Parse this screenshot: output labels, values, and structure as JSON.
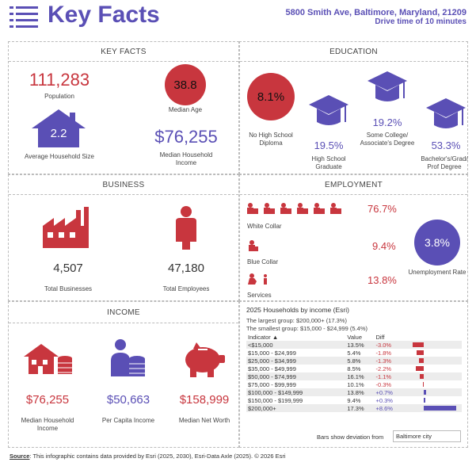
{
  "header": {
    "title": "Key Facts",
    "address": "5800 Smith Ave, Baltimore, Maryland, 21209",
    "drive_time": "Drive time of 10 minutes"
  },
  "key_facts": {
    "heading": "KEY FACTS",
    "population": {
      "value": "111,283",
      "label": "Population"
    },
    "median_age": {
      "value": "38.8",
      "label": "Median Age"
    },
    "household_size": {
      "value": "2.2",
      "label": "Average Household Size"
    },
    "median_income": {
      "value": "$76,255",
      "label": "Median Household Income"
    }
  },
  "education": {
    "heading": "EDUCATION",
    "no_hs": {
      "value": "8.1%",
      "label": "No High School Diploma"
    },
    "hs": {
      "value": "19.5%",
      "label": "High School Graduate"
    },
    "college": {
      "value": "19.2%",
      "label": "Some College/ Associate's Degree"
    },
    "bachelor": {
      "value": "53.3%",
      "label": "Bachelor's/Grad/ Prof Degree"
    }
  },
  "business": {
    "heading": "BUSINESS",
    "businesses": {
      "value": "4,507",
      "label": "Total Businesses"
    },
    "employees": {
      "value": "47,180",
      "label": "Total Employees"
    }
  },
  "employment": {
    "heading": "EMPLOYMENT",
    "white_collar": {
      "value": "76.7%",
      "label": "White Collar"
    },
    "blue_collar": {
      "value": "9.4%",
      "label": "Blue Collar"
    },
    "services": {
      "value": "13.8%",
      "label": "Services"
    },
    "unemployment": {
      "value": "3.8%",
      "label": "Unemployment Rate"
    }
  },
  "income": {
    "heading": "INCOME",
    "household": {
      "value": "$76,255",
      "label": "Median Household Income"
    },
    "per_capita": {
      "value": "$50,663",
      "label": "Per Capita Income"
    },
    "net_worth": {
      "value": "$158,999",
      "label": "Median Net Worth"
    }
  },
  "households": {
    "title": "2025 Households by income (Esri)",
    "largest": "The largest group: $200,000+ (17.3%)",
    "smallest": "The smallest group: $15,000 - $24,999 (5.4%)",
    "columns": [
      "Indicator ▲",
      "Value",
      "Diff"
    ],
    "rows": [
      {
        "indicator": "<$15,000",
        "value": "13.5%",
        "diff": "-3.0%",
        "dev": -3.0
      },
      {
        "indicator": "$15,000 - $24,999",
        "value": "5.4%",
        "diff": "-1.8%",
        "dev": -1.8
      },
      {
        "indicator": "$25,000 - $34,999",
        "value": "5.8%",
        "diff": "-1.3%",
        "dev": -1.3
      },
      {
        "indicator": "$35,000 - $49,999",
        "value": "8.5%",
        "diff": "-2.2%",
        "dev": -2.2
      },
      {
        "indicator": "$50,000 - $74,999",
        "value": "16.1%",
        "diff": "-1.1%",
        "dev": -1.1
      },
      {
        "indicator": "$75,000 - $99,999",
        "value": "10.1%",
        "diff": "-0.3%",
        "dev": -0.3
      },
      {
        "indicator": "$100,000 - $149,999",
        "value": "13.8%",
        "diff": "+0.7%",
        "dev": 0.7
      },
      {
        "indicator": "$150,000 - $199,999",
        "value": "9.4%",
        "diff": "+0.3%",
        "dev": 0.3
      },
      {
        "indicator": "$200,000+",
        "value": "17.3%",
        "diff": "+8.6%",
        "dev": 8.6
      }
    ],
    "deviation_label": "Bars show deviation from",
    "deviation_from": "Baltimore city"
  },
  "source": {
    "label": "Source",
    "text": ": This infographic contains data provided by Esri (2025, 2030), Esri-Data Axle (2025). © 2026 Esri"
  },
  "colors": {
    "red": "#c8363e",
    "purple": "#5a4fb5"
  }
}
